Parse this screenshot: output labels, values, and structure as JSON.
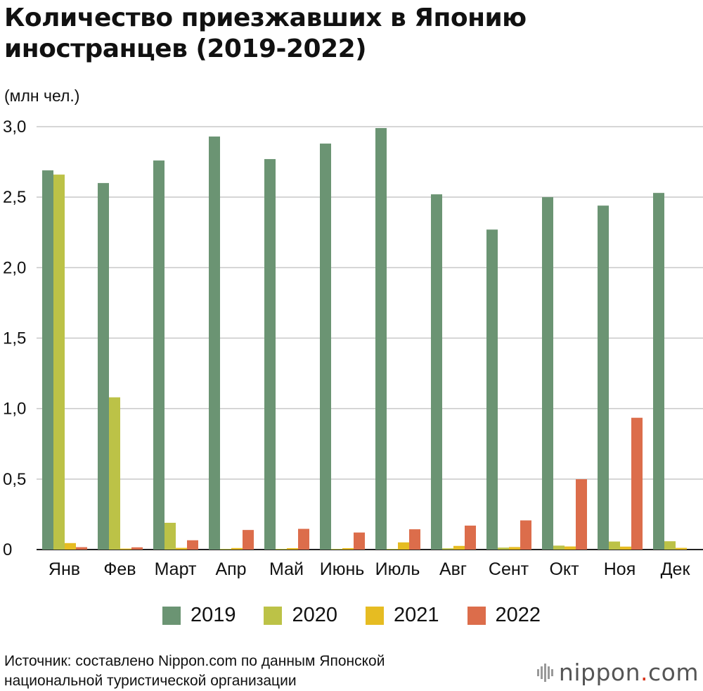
{
  "header": {
    "title": "Количество приезжавших в Японию иностранцев (2019-2022)",
    "unit": "(млн чел.)"
  },
  "footer": {
    "source_line1": "Источник: составлено Nippon.com по данным Японской",
    "source_line2": "национальной туристической организации",
    "logo_text": "nippon",
    "logo_dot": ".",
    "logo_tld": "com"
  },
  "colors": {
    "2019": "#6b9473",
    "2020": "#bcc247",
    "2021": "#e6bc22",
    "2022": "#dc6d4b",
    "grid": "#c8c8c8",
    "axis": "#222222"
  },
  "chart_data": {
    "type": "bar",
    "title": "Количество приезжавших в Японию иностранцев (2019-2022)",
    "ylabel": "(млн чел.)",
    "ylim": [
      0,
      3.0
    ],
    "yticks": [
      "0",
      "0,5",
      "1,0",
      "1,5",
      "2,0",
      "2,5",
      "3,0"
    ],
    "ytick_values": [
      0,
      0.5,
      1.0,
      1.5,
      2.0,
      2.5,
      3.0
    ],
    "grid": true,
    "legend_position": "bottom",
    "categories": [
      "Янв",
      "Фев",
      "Март",
      "Апр",
      "Май",
      "Июнь",
      "Июль",
      "Авг",
      "Сент",
      "Окт",
      "Ноя",
      "Дек"
    ],
    "series": [
      {
        "name": "2019",
        "values": [
          2.69,
          2.6,
          2.76,
          2.93,
          2.77,
          2.88,
          2.99,
          2.52,
          2.27,
          2.5,
          2.44,
          2.53
        ]
      },
      {
        "name": "2020",
        "values": [
          2.66,
          1.08,
          0.19,
          0.003,
          0.002,
          0.003,
          0.004,
          0.009,
          0.014,
          0.028,
          0.057,
          0.059
        ]
      },
      {
        "name": "2021",
        "values": [
          0.046,
          0.007,
          0.012,
          0.011,
          0.01,
          0.01,
          0.051,
          0.026,
          0.018,
          0.022,
          0.021,
          0.012
        ]
      },
      {
        "name": "2022",
        "values": [
          0.017,
          0.016,
          0.066,
          0.139,
          0.147,
          0.121,
          0.144,
          0.17,
          0.207,
          0.499,
          0.935,
          null
        ]
      }
    ]
  }
}
